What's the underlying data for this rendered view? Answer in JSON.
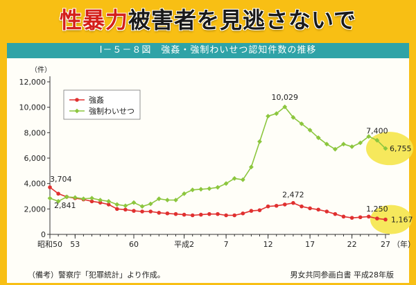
{
  "headline": {
    "highlight": "性暴力",
    "rest": "被害者を見逃さないで"
  },
  "banner": "Ⅰ－５－８図　強姦・強制わいせつ認知件数の推移",
  "footnote": "（備考）警察庁「犯罪統計」より作成。",
  "source": "男女共同参画白書 平成28年版",
  "colors": {
    "background": "#f8bf14",
    "banner": "#2fa3a7",
    "rape_series": "#e03030",
    "indecent_series": "#8cc63e",
    "highlight_circle": "#f5e64a"
  },
  "chart_data": {
    "type": "line",
    "ylabel": "（件）",
    "xlabel": "（年）",
    "ylim": [
      0,
      12000
    ],
    "y_ticks": [
      0,
      2000,
      4000,
      6000,
      8000,
      10000,
      12000
    ],
    "y_tick_labels": [
      "0",
      "2,000",
      "4,000",
      "6,000",
      "8,000",
      "10,000",
      "12,000"
    ],
    "x_start_index": 0,
    "x_end_index": 40,
    "x_tick_labels": [
      {
        "at": 0,
        "label": "昭和50"
      },
      {
        "at": 3,
        "label": "53"
      },
      {
        "at": 10,
        "label": "60"
      },
      {
        "at": 16,
        "label": "平成2"
      },
      {
        "at": 21,
        "label": "7"
      },
      {
        "at": 26,
        "label": "12"
      },
      {
        "at": 31,
        "label": "17"
      },
      {
        "at": 36,
        "label": "22"
      },
      {
        "at": 40,
        "label": "27"
      }
    ],
    "x_minor_ticks": [
      0,
      1,
      2,
      3,
      4,
      5,
      6,
      7,
      8,
      9,
      10,
      11,
      12,
      13,
      14,
      15,
      16,
      17,
      18,
      19,
      20,
      21,
      22,
      23,
      24,
      25,
      26,
      27,
      28,
      29,
      30,
      31,
      32,
      33,
      34,
      35,
      36,
      37,
      38,
      39,
      40
    ],
    "series": [
      {
        "name": "強姦",
        "color": "#e03030",
        "marker": "circle",
        "values": [
          3704,
          3200,
          2950,
          2850,
          2750,
          2600,
          2500,
          2350,
          2000,
          1950,
          1850,
          1800,
          1800,
          1700,
          1650,
          1600,
          1550,
          1500,
          1550,
          1600,
          1600,
          1500,
          1500,
          1650,
          1850,
          1900,
          2200,
          2250,
          2350,
          2472,
          2200,
          2050,
          1950,
          1800,
          1600,
          1400,
          1300,
          1350,
          1400,
          1250,
          1167
        ]
      },
      {
        "name": "強制わいせつ",
        "color": "#8cc63e",
        "marker": "diamond",
        "values": [
          2841,
          2600,
          2950,
          2900,
          2800,
          2850,
          2700,
          2600,
          2350,
          2250,
          2500,
          2200,
          2400,
          2800,
          2700,
          2700,
          3200,
          3500,
          3550,
          3600,
          3700,
          4000,
          4400,
          4300,
          5300,
          7300,
          9300,
          9500,
          10029,
          9200,
          8700,
          8200,
          7600,
          7100,
          6700,
          7100,
          6900,
          7200,
          7700,
          7400,
          6755
        ]
      }
    ],
    "annotations": [
      {
        "series": 0,
        "at": 0,
        "label": "3,704"
      },
      {
        "series": 1,
        "at": 0,
        "label": "2,841"
      },
      {
        "series": 0,
        "at": 29,
        "label": "2,472"
      },
      {
        "series": 1,
        "at": 28,
        "label": "10,029"
      },
      {
        "series": 1,
        "at": 39,
        "label": "7,400"
      },
      {
        "series": 0,
        "at": 39,
        "label": "1,250"
      },
      {
        "series": 1,
        "at": 40,
        "label": "6,755"
      },
      {
        "series": 0,
        "at": 40,
        "label": "1,167"
      }
    ],
    "legend": {
      "placement": "top-left",
      "entries": [
        "強姦",
        "強制わいせつ"
      ]
    },
    "grid": false
  }
}
